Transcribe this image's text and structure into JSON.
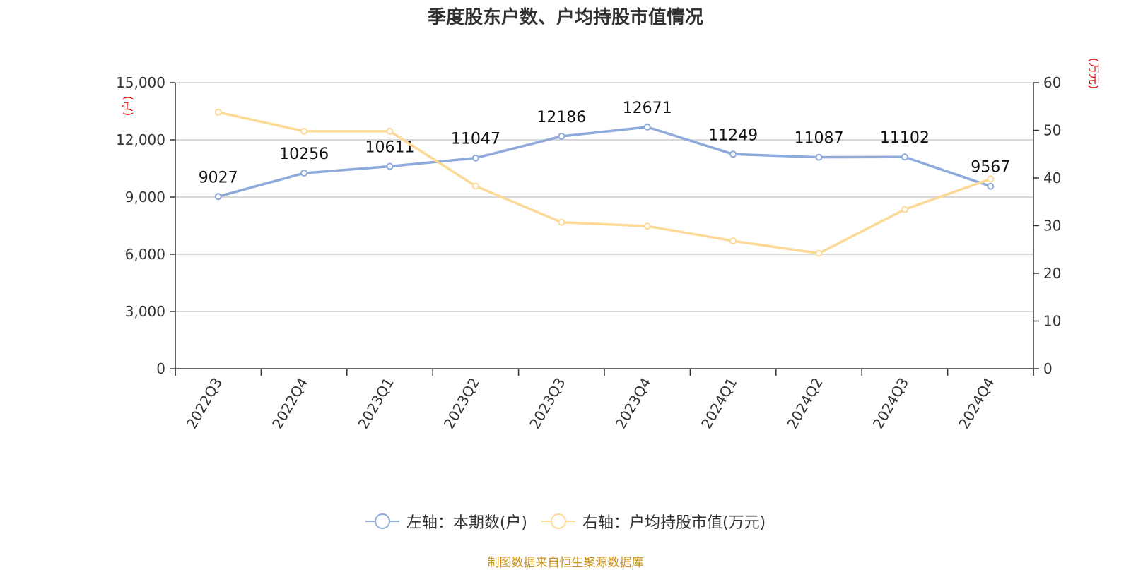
{
  "chart_data": {
    "type": "line",
    "title": "季度股东户数、户均持股市值情况",
    "categories": [
      "2022Q3",
      "2022Q4",
      "2023Q1",
      "2023Q2",
      "2023Q3",
      "2023Q4",
      "2024Q1",
      "2024Q2",
      "2024Q3",
      "2024Q4"
    ],
    "y_left": {
      "unit": "(户)",
      "ylim": [
        0,
        15000
      ],
      "ticks": [
        "0",
        "3,000",
        "6,000",
        "9,000",
        "12,000",
        "15,000"
      ],
      "tick_values": [
        0,
        3000,
        6000,
        9000,
        12000,
        15000
      ]
    },
    "y_right": {
      "unit": "(万元)",
      "ylim": [
        0,
        60
      ],
      "ticks": [
        "0",
        "10",
        "20",
        "30",
        "40",
        "50",
        "60"
      ],
      "tick_values": [
        0,
        10,
        20,
        30,
        40,
        50,
        60
      ]
    },
    "series": [
      {
        "name": "左轴：本期数(户)",
        "axis": "left",
        "color": "#8eaadb",
        "values": [
          9027,
          10256,
          10611,
          11047,
          12186,
          12671,
          11249,
          11087,
          11102,
          9567
        ],
        "labels": [
          "9027",
          "10256",
          "10611",
          "11047",
          "12186",
          "12671",
          "11249",
          "11087",
          "11102",
          "9567"
        ]
      },
      {
        "name": "右轴：户均持股市值(万元)",
        "axis": "right",
        "color": "#fdd998",
        "values": [
          53.8,
          49.8,
          49.8,
          38.3,
          30.7,
          29.9,
          26.8,
          24.2,
          33.4,
          39.8
        ]
      }
    ],
    "grid": true,
    "legend_position": "bottom"
  },
  "source": "制图数据来自恒生聚源数据库"
}
